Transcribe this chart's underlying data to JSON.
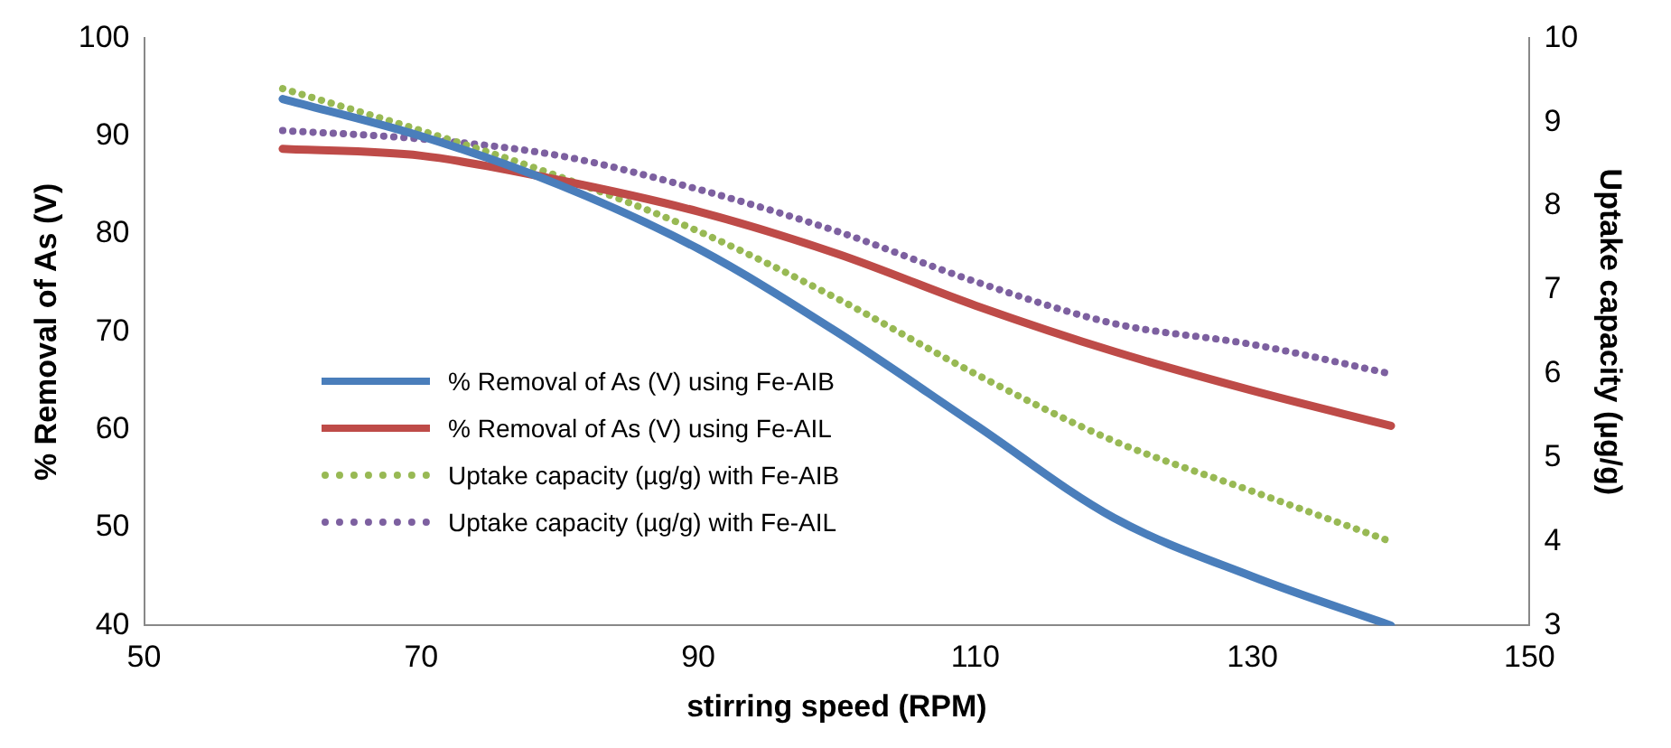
{
  "chart_data": {
    "type": "line",
    "xlabel": "stirring speed (RPM)",
    "ylabel": "% Removal of As (V)",
    "y2label": "Uptake capacity (µg/g)",
    "x": [
      60,
      70,
      80,
      90,
      100,
      110,
      120,
      130,
      140
    ],
    "xlim": [
      50,
      150
    ],
    "xticks": [
      50,
      70,
      90,
      110,
      130,
      150
    ],
    "ylim": [
      40,
      100
    ],
    "yticks": [
      40,
      50,
      60,
      70,
      80,
      90,
      100
    ],
    "y2lim": [
      3,
      10
    ],
    "y2ticks": [
      3,
      4,
      5,
      6,
      7,
      8,
      9,
      10
    ],
    "grid": false,
    "legend": "left",
    "marker": "none",
    "series": [
      {
        "name": "% Removal of As (V) using Fe-AIB",
        "color": "#4a7ebb",
        "line_style": "solid",
        "values": [
          93.8,
          90,
          85,
          78.5,
          70,
          60.5,
          51,
          45,
          40
        ]
      },
      {
        "name": "% Removal of As (V) using Fe-AIL",
        "color": "#be4b48",
        "line_style": "solid",
        "values": [
          88.7,
          88,
          85.5,
          82.3,
          78,
          72.7,
          68,
          64,
          60.4
        ]
      },
      {
        "name": "Uptake capacity (µg/g) with Fe-AIB",
        "color": "#98b954",
        "line_style": "dotted",
        "axis": "y2",
        "values": [
          9.4,
          8.9,
          8.35,
          7.7,
          6.9,
          6.0,
          5.2,
          4.6,
          4.0
        ]
      },
      {
        "name": "Uptake capacity (µg/g) with Fe-AIL",
        "color": "#7d60a0",
        "line_style": "dotted",
        "axis": "y2",
        "values": [
          8.9,
          8.8,
          8.6,
          8.2,
          7.7,
          7.1,
          6.6,
          6.35,
          6.0
        ]
      }
    ]
  }
}
